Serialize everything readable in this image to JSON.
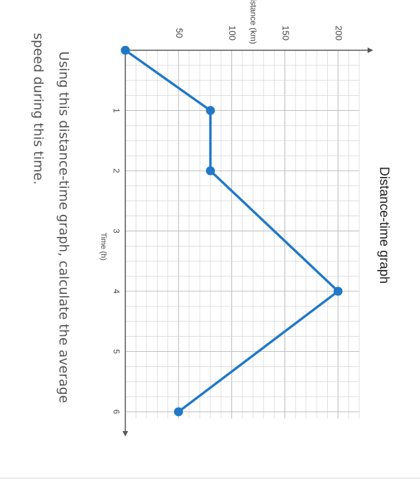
{
  "question": {
    "line1": "Using this distance-time graph, calculate the average",
    "line2": "speed during this time."
  },
  "chart_data": {
    "type": "line",
    "title": "Distance-time graph",
    "xlabel": "Time (h)",
    "ylabel": "Distance (km)",
    "xlim": [
      0,
      6
    ],
    "ylim": [
      0,
      220
    ],
    "x_ticks": [
      1,
      2,
      3,
      4,
      5,
      6
    ],
    "y_ticks": [
      50,
      100,
      150,
      200
    ],
    "grid": true,
    "series": [
      {
        "x": [
          0,
          1,
          2,
          4,
          6
        ],
        "values": [
          0,
          80,
          80,
          200,
          50
        ]
      }
    ],
    "colors": {
      "line": "#1f78c8",
      "grid": "#d4d4d4",
      "axis": "#555555",
      "text": "#444444"
    }
  }
}
